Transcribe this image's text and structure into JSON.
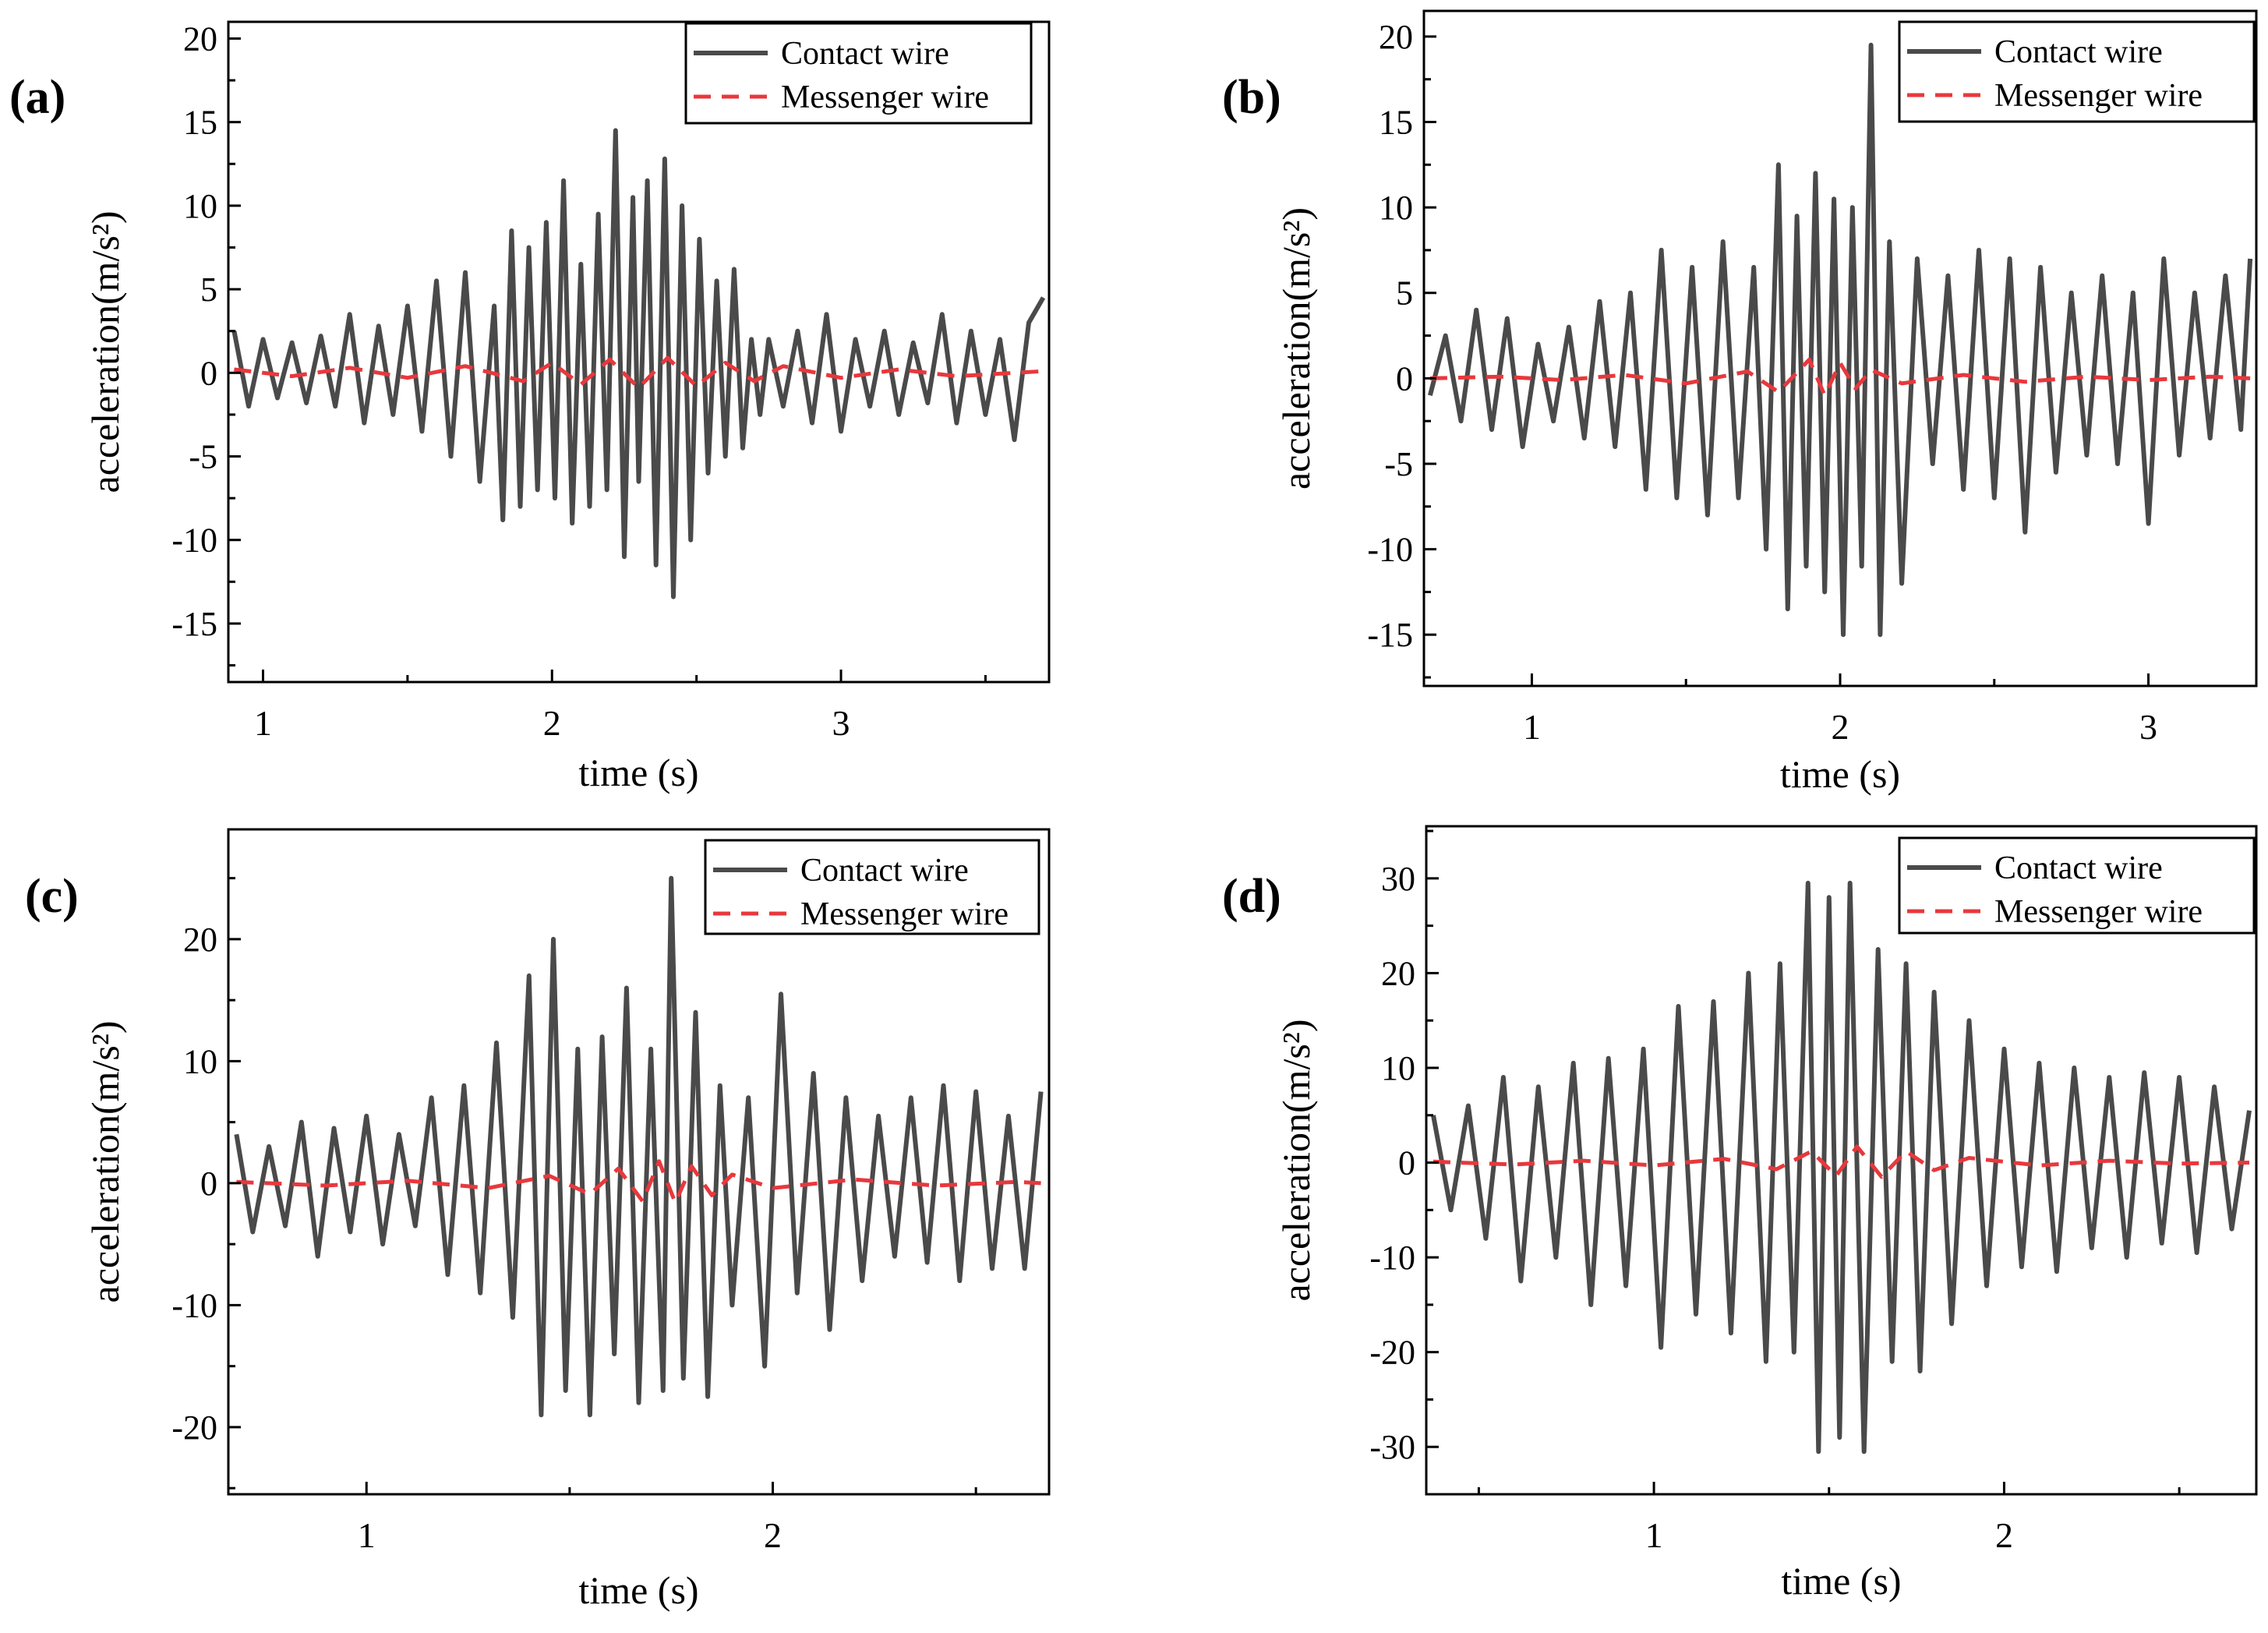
{
  "figure": {
    "description_note": "",
    "legend": {
      "contact": "Contact wire",
      "messenger": "Messenger wire"
    },
    "colors": {
      "contact": "#4a4a4a",
      "messenger": "#e8383d",
      "axis": "#000000"
    }
  },
  "chart_data": [
    {
      "panel_label": "(a)",
      "type": "line",
      "xlabel": "time (s)",
      "ylabel": "acceleration(m/s²)",
      "xlim": [
        0.88,
        3.72
      ],
      "ylim": [
        -18.5,
        21.0
      ],
      "xticks": [
        1,
        2,
        3
      ],
      "xtick_labels": [
        "1",
        "2",
        "3"
      ],
      "yticks": [
        -15,
        -10,
        -5,
        0,
        5,
        10,
        15,
        20
      ],
      "ytick_labels": [
        "-15",
        "-10",
        "-5",
        "0",
        "5",
        "10",
        "15",
        "20"
      ],
      "legend_position": "top-right",
      "series": [
        {
          "name": "Contact wire",
          "style": "solid",
          "color": "#4a4a4a",
          "x": [
            0.9,
            0.95,
            1.0,
            1.05,
            1.1,
            1.15,
            1.2,
            1.25,
            1.3,
            1.35,
            1.4,
            1.45,
            1.5,
            1.55,
            1.6,
            1.65,
            1.7,
            1.75,
            1.8,
            1.83,
            1.86,
            1.89,
            1.92,
            1.95,
            1.98,
            2.01,
            2.04,
            2.07,
            2.1,
            2.13,
            2.16,
            2.19,
            2.22,
            2.25,
            2.28,
            2.3,
            2.33,
            2.36,
            2.39,
            2.42,
            2.45,
            2.48,
            2.51,
            2.54,
            2.57,
            2.6,
            2.63,
            2.66,
            2.69,
            2.72,
            2.75,
            2.8,
            2.85,
            2.9,
            2.95,
            3.0,
            3.05,
            3.1,
            3.15,
            3.2,
            3.25,
            3.3,
            3.35,
            3.4,
            3.45,
            3.5,
            3.55,
            3.6,
            3.65,
            3.7
          ],
          "y": [
            2.5,
            -2.0,
            2.0,
            -1.5,
            1.8,
            -1.8,
            2.2,
            -2.0,
            3.5,
            -3.0,
            2.8,
            -2.5,
            4.0,
            -3.5,
            5.5,
            -5.0,
            6.0,
            -6.5,
            4.0,
            -8.8,
            8.5,
            -8.0,
            7.5,
            -7.0,
            9.0,
            -7.5,
            11.5,
            -9.0,
            6.5,
            -8.0,
            9.5,
            -7.0,
            14.5,
            -11.0,
            10.5,
            -6.5,
            11.5,
            -11.5,
            12.8,
            -13.4,
            10.0,
            -10.0,
            8.0,
            -6.0,
            5.5,
            -5.0,
            6.2,
            -4.5,
            2.0,
            -2.5,
            2.0,
            -2.0,
            2.5,
            -3.0,
            3.5,
            -3.5,
            2.0,
            -2.0,
            2.5,
            -2.5,
            1.8,
            -1.8,
            3.5,
            -3.0,
            2.5,
            -2.5,
            2.0,
            -4.0,
            3.0,
            4.5
          ]
        },
        {
          "name": "Messenger wire",
          "style": "dashed",
          "color": "#e8383d",
          "x": [
            0.9,
            1.1,
            1.3,
            1.5,
            1.7,
            1.9,
            2.0,
            2.1,
            2.2,
            2.3,
            2.4,
            2.5,
            2.6,
            2.7,
            2.8,
            3.0,
            3.2,
            3.4,
            3.7
          ],
          "y": [
            0.2,
            -0.2,
            0.3,
            -0.3,
            0.4,
            -0.5,
            0.6,
            -0.7,
            0.8,
            -0.9,
            0.9,
            -0.8,
            0.6,
            -0.5,
            0.4,
            -0.3,
            0.2,
            -0.2,
            0.1
          ]
        }
      ]
    },
    {
      "panel_label": "(b)",
      "type": "line",
      "xlabel": "time (s)",
      "ylabel": "acceleration(m/s²)",
      "xlim": [
        0.65,
        3.35
      ],
      "ylim": [
        -18.0,
        21.5
      ],
      "xticks": [
        1,
        2,
        3
      ],
      "xtick_labels": [
        "1",
        "2",
        "3"
      ],
      "yticks": [
        -15,
        -10,
        -5,
        0,
        5,
        10,
        15,
        20
      ],
      "ytick_labels": [
        "-15",
        "-10",
        "-5",
        "0",
        "5",
        "10",
        "15",
        "20"
      ],
      "legend_position": "top-right",
      "series": [
        {
          "name": "Contact wire",
          "style": "solid",
          "color": "#4a4a4a",
          "x": [
            0.67,
            0.72,
            0.77,
            0.82,
            0.87,
            0.92,
            0.97,
            1.02,
            1.07,
            1.12,
            1.17,
            1.22,
            1.27,
            1.32,
            1.37,
            1.42,
            1.47,
            1.52,
            1.57,
            1.62,
            1.67,
            1.72,
            1.76,
            1.8,
            1.83,
            1.86,
            1.89,
            1.92,
            1.95,
            1.98,
            2.01,
            2.04,
            2.07,
            2.1,
            2.13,
            2.16,
            2.2,
            2.25,
            2.3,
            2.35,
            2.4,
            2.45,
            2.5,
            2.55,
            2.6,
            2.65,
            2.7,
            2.75,
            2.8,
            2.85,
            2.9,
            2.95,
            3.0,
            3.05,
            3.1,
            3.15,
            3.2,
            3.25,
            3.3,
            3.33
          ],
          "y": [
            -1.0,
            2.5,
            -2.5,
            4.0,
            -3.0,
            3.5,
            -4.0,
            2.0,
            -2.5,
            3.0,
            -3.5,
            4.5,
            -4.0,
            5.0,
            -6.5,
            7.5,
            -7.0,
            6.5,
            -8.0,
            8.0,
            -7.0,
            6.5,
            -10.0,
            12.5,
            -13.5,
            9.5,
            -11.0,
            12.0,
            -12.5,
            10.5,
            -15.0,
            10.0,
            -11.0,
            19.5,
            -15.0,
            8.0,
            -12.0,
            7.0,
            -5.0,
            6.0,
            -6.5,
            7.5,
            -7.0,
            7.0,
            -9.0,
            6.5,
            -5.5,
            5.0,
            -4.5,
            6.0,
            -5.0,
            5.0,
            -8.5,
            7.0,
            -4.5,
            5.0,
            -3.5,
            6.0,
            -3.0,
            7.0
          ]
        },
        {
          "name": "Messenger wire",
          "style": "dashed",
          "color": "#e8383d",
          "x": [
            0.67,
            0.9,
            1.1,
            1.3,
            1.5,
            1.7,
            1.8,
            1.9,
            1.95,
            2.0,
            2.05,
            2.1,
            2.2,
            2.4,
            2.6,
            2.8,
            3.0,
            3.2,
            3.33
          ],
          "y": [
            0.0,
            0.1,
            -0.1,
            0.2,
            -0.3,
            0.4,
            -0.8,
            1.1,
            -1.0,
            0.9,
            -0.6,
            0.5,
            -0.3,
            0.2,
            -0.2,
            0.1,
            -0.1,
            0.1,
            0.0
          ]
        }
      ]
    },
    {
      "panel_label": "(c)",
      "type": "line",
      "xlabel": "time (s)",
      "ylabel": "acceleration(m/s²)",
      "xlim": [
        0.66,
        2.68
      ],
      "ylim": [
        -25.5,
        29.0
      ],
      "xticks": [
        1,
        2
      ],
      "xtick_labels": [
        "1",
        "2"
      ],
      "yticks": [
        -20,
        -10,
        0,
        10,
        20
      ],
      "ytick_labels": [
        "-20",
        "-10",
        "0",
        "10",
        "20"
      ],
      "legend_position": "top-right",
      "series": [
        {
          "name": "Contact wire",
          "style": "solid",
          "color": "#4a4a4a",
          "x": [
            0.68,
            0.72,
            0.76,
            0.8,
            0.84,
            0.88,
            0.92,
            0.96,
            1.0,
            1.04,
            1.08,
            1.12,
            1.16,
            1.2,
            1.24,
            1.28,
            1.32,
            1.36,
            1.4,
            1.43,
            1.46,
            1.49,
            1.52,
            1.55,
            1.58,
            1.61,
            1.64,
            1.67,
            1.7,
            1.73,
            1.75,
            1.78,
            1.81,
            1.84,
            1.87,
            1.9,
            1.94,
            1.98,
            2.02,
            2.06,
            2.1,
            2.14,
            2.18,
            2.22,
            2.26,
            2.3,
            2.34,
            2.38,
            2.42,
            2.46,
            2.5,
            2.54,
            2.58,
            2.62,
            2.66
          ],
          "y": [
            4.0,
            -4.0,
            3.0,
            -3.5,
            5.0,
            -6.0,
            4.5,
            -4.0,
            5.5,
            -5.0,
            4.0,
            -3.5,
            7.0,
            -7.5,
            8.0,
            -9.0,
            11.5,
            -11.0,
            17.0,
            -19.0,
            20.0,
            -17.0,
            11.0,
            -19.0,
            12.0,
            -14.0,
            16.0,
            -18.0,
            11.0,
            -17.0,
            25.0,
            -16.0,
            14.0,
            -17.5,
            8.0,
            -10.0,
            7.0,
            -15.0,
            15.5,
            -9.0,
            9.0,
            -12.0,
            7.0,
            -8.0,
            5.5,
            -6.0,
            7.0,
            -6.5,
            8.0,
            -8.0,
            7.5,
            -7.0,
            5.5,
            -7.0,
            7.5
          ]
        },
        {
          "name": "Messenger wire",
          "style": "dashed",
          "color": "#e8383d",
          "x": [
            0.68,
            0.9,
            1.1,
            1.3,
            1.45,
            1.55,
            1.62,
            1.68,
            1.72,
            1.76,
            1.8,
            1.85,
            1.9,
            2.0,
            2.2,
            2.4,
            2.6,
            2.66
          ],
          "y": [
            0.1,
            -0.2,
            0.2,
            -0.4,
            0.6,
            -0.9,
            1.2,
            -1.5,
            1.8,
            -1.6,
            1.4,
            -1.0,
            0.7,
            -0.4,
            0.3,
            -0.2,
            0.1,
            0.0
          ]
        }
      ]
    },
    {
      "panel_label": "(d)",
      "type": "line",
      "xlabel": "time (s)",
      "ylabel": "acceleration(m/s²)",
      "xlim": [
        0.35,
        2.72
      ],
      "ylim": [
        -35.0,
        35.5
      ],
      "xticks": [
        1,
        2
      ],
      "xtick_labels": [
        "1",
        "2"
      ],
      "yticks": [
        -30,
        -20,
        -10,
        0,
        10,
        20,
        30
      ],
      "ytick_labels": [
        "-30",
        "-20",
        "-10",
        "0",
        "10",
        "20",
        "30"
      ],
      "legend_position": "top-right",
      "series": [
        {
          "name": "Contact wire",
          "style": "solid",
          "color": "#4a4a4a",
          "x": [
            0.37,
            0.42,
            0.47,
            0.52,
            0.57,
            0.62,
            0.67,
            0.72,
            0.77,
            0.82,
            0.87,
            0.92,
            0.97,
            1.02,
            1.07,
            1.12,
            1.17,
            1.22,
            1.27,
            1.32,
            1.36,
            1.4,
            1.44,
            1.47,
            1.5,
            1.53,
            1.56,
            1.6,
            1.64,
            1.68,
            1.72,
            1.76,
            1.8,
            1.85,
            1.9,
            1.95,
            2.0,
            2.05,
            2.1,
            2.15,
            2.2,
            2.25,
            2.3,
            2.35,
            2.4,
            2.45,
            2.5,
            2.55,
            2.6,
            2.65,
            2.7
          ],
          "y": [
            5.0,
            -5.0,
            6.0,
            -8.0,
            9.0,
            -12.5,
            8.0,
            -10.0,
            10.5,
            -15.0,
            11.0,
            -13.0,
            12.0,
            -19.5,
            16.5,
            -16.0,
            17.0,
            -18.0,
            20.0,
            -21.0,
            21.0,
            -20.0,
            29.5,
            -30.5,
            28.0,
            -29.0,
            29.5,
            -30.5,
            22.5,
            -21.0,
            21.0,
            -22.0,
            18.0,
            -17.0,
            15.0,
            -13.0,
            12.0,
            -11.0,
            10.5,
            -11.5,
            10.0,
            -9.0,
            9.0,
            -10.0,
            9.5,
            -8.5,
            9.0,
            -9.5,
            8.0,
            -7.0,
            5.5
          ]
        },
        {
          "name": "Messenger wire",
          "style": "dashed",
          "color": "#e8383d",
          "x": [
            0.37,
            0.6,
            0.8,
            1.0,
            1.2,
            1.35,
            1.45,
            1.52,
            1.58,
            1.65,
            1.72,
            1.8,
            1.9,
            2.1,
            2.3,
            2.5,
            2.7
          ],
          "y": [
            0.1,
            -0.2,
            0.2,
            -0.3,
            0.4,
            -0.7,
            1.2,
            -1.4,
            1.7,
            -1.5,
            1.2,
            -0.8,
            0.5,
            -0.3,
            0.2,
            -0.1,
            0.0
          ]
        }
      ]
    }
  ]
}
